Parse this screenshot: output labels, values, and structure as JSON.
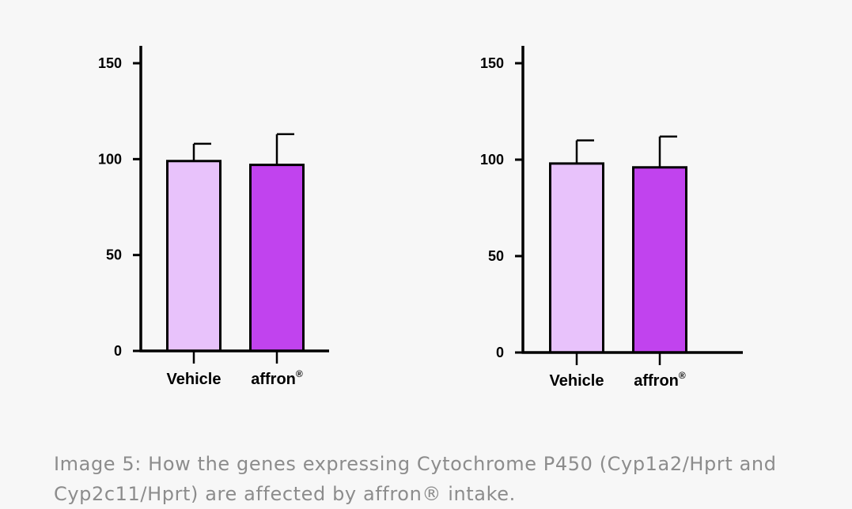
{
  "chart_data": [
    {
      "type": "bar",
      "categories": [
        "Vehicle",
        "affron"
      ],
      "category_superscripts": [
        "",
        "®"
      ],
      "values": [
        99,
        97
      ],
      "error_upper": [
        108,
        113
      ],
      "colors": [
        "#e8c2fb",
        "#c143ee"
      ],
      "yticks": [
        0,
        50,
        100,
        150
      ],
      "ylim": [
        0,
        155
      ]
    },
    {
      "type": "bar",
      "categories": [
        "Vehicle",
        "affron"
      ],
      "category_superscripts": [
        "",
        "®"
      ],
      "values": [
        98,
        96
      ],
      "error_upper": [
        110,
        112
      ],
      "colors": [
        "#e8c2fb",
        "#c143ee"
      ],
      "yticks": [
        0,
        50,
        100,
        150
      ],
      "ylim": [
        0,
        155
      ]
    }
  ],
  "caption": "Image 5: How the genes expressing Cytochrome P450 (Cyp1a2/Hprt and Cyp2c11/Hprt) are affected by affron® intake."
}
